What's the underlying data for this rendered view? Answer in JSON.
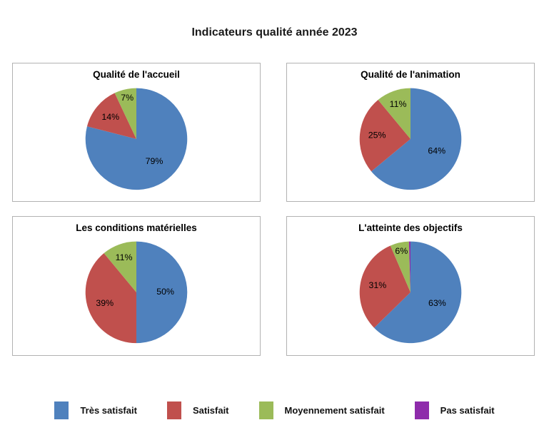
{
  "page": {
    "title": "Indicateurs qualité année 2023",
    "background": "#ffffff"
  },
  "colors": {
    "tres_satisfait": "#4F81BD",
    "satisfait": "#C0504D",
    "moyennement_satisfait": "#9BBB59",
    "pas_satisfait": "#8E2BAB",
    "panel_border": "#b2b2b2",
    "label_text": "#000000"
  },
  "chart_data": [
    {
      "type": "pie",
      "title": "Qualité de l'accueil",
      "start_angle": "12-oclock-clockwise",
      "slices": [
        {
          "name": "Très satisfait",
          "pct": 79,
          "label": "79%",
          "color": "#4F81BD"
        },
        {
          "name": "Satisfait",
          "pct": 14,
          "label": "14%",
          "color": "#C0504D"
        },
        {
          "name": "Moyennement satisfait",
          "pct": 7,
          "label": "7%",
          "color": "#9BBB59"
        }
      ]
    },
    {
      "type": "pie",
      "title": "Qualité de l'animation",
      "start_angle": "12-oclock-clockwise",
      "slices": [
        {
          "name": "Très satisfait",
          "pct": 64,
          "label": "64%",
          "color": "#4F81BD"
        },
        {
          "name": "Satisfait",
          "pct": 25,
          "label": "25%",
          "color": "#C0504D"
        },
        {
          "name": "Moyennement satisfait",
          "pct": 11,
          "label": "11%",
          "color": "#9BBB59"
        }
      ]
    },
    {
      "type": "pie",
      "title": "Les conditions matérielles",
      "start_angle": "12-oclock-clockwise",
      "slices": [
        {
          "name": "Très satisfait",
          "pct": 50,
          "label": "50%",
          "color": "#4F81BD"
        },
        {
          "name": "Satisfait",
          "pct": 39,
          "label": "39%",
          "color": "#C0504D"
        },
        {
          "name": "Moyennement satisfait",
          "pct": 11,
          "label": "11%",
          "color": "#9BBB59"
        }
      ]
    },
    {
      "type": "pie",
      "title": "L'atteinte des objectifs",
      "start_angle": "12-oclock-clockwise",
      "slices": [
        {
          "name": "Très satisfait",
          "pct": 63,
          "label": "63%",
          "color": "#4F81BD"
        },
        {
          "name": "Satisfait",
          "pct": 31,
          "label": "31%",
          "color": "#C0504D"
        },
        {
          "name": "Moyennement satisfait",
          "pct": 6,
          "label": "6%",
          "color": "#9BBB59"
        },
        {
          "name": "Pas satisfait",
          "pct": 0.5,
          "label": "",
          "color": "#8E2BAB"
        }
      ]
    }
  ],
  "legend": {
    "position": "bottom",
    "items": [
      {
        "label": "Très satisfait",
        "color": "#4F81BD"
      },
      {
        "label": "Satisfait",
        "color": "#C0504D"
      },
      {
        "label": "Moyennement satisfait",
        "color": "#9BBB59"
      },
      {
        "label": "Pas satisfait",
        "color": "#8E2BAB"
      }
    ]
  }
}
